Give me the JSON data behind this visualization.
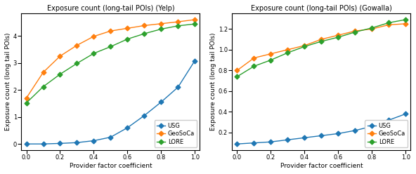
{
  "x": [
    0.0,
    0.1,
    0.2,
    0.3,
    0.4,
    0.5,
    0.6,
    0.7,
    0.8,
    0.9,
    1.0
  ],
  "yelp_usg": [
    0.0,
    0.0,
    0.02,
    0.05,
    0.12,
    0.25,
    0.6,
    1.05,
    1.55,
    2.1,
    3.08
  ],
  "yelp_geosoca": [
    1.7,
    2.65,
    3.25,
    3.65,
    3.98,
    4.18,
    4.28,
    4.38,
    4.45,
    4.52,
    4.6
  ],
  "yelp_lore": [
    1.52,
    2.12,
    2.58,
    2.98,
    3.35,
    3.6,
    3.88,
    4.08,
    4.25,
    4.37,
    4.44
  ],
  "gowa_usg": [
    0.09,
    0.1,
    0.11,
    0.13,
    0.15,
    0.17,
    0.19,
    0.22,
    0.26,
    0.32,
    0.38
  ],
  "gowa_geosoca": [
    0.8,
    0.92,
    0.96,
    1.0,
    1.04,
    1.1,
    1.14,
    1.18,
    1.2,
    1.24,
    1.25
  ],
  "gowa_lore": [
    0.74,
    0.84,
    0.9,
    0.97,
    1.03,
    1.08,
    1.12,
    1.17,
    1.21,
    1.26,
    1.29
  ],
  "color_usg": "#1f77b4",
  "color_geosoca": "#ff7f0e",
  "color_lore": "#2ca02c",
  "title_yelp": "Exposure count (long-tail POIs) (Yelp)",
  "title_gowa": "Exposure count (long-tail POIs) (Gowalla)",
  "ylabel": "Exposure count (long tail POIs)",
  "xlabel": "Provider factor coefficient",
  "legend_labels": [
    "USG",
    "GeoSoCa",
    "LORE"
  ],
  "title_fontsize": 7,
  "label_fontsize": 6.5,
  "tick_fontsize": 6,
  "legend_fontsize": 6,
  "marker_size": 3.5,
  "line_width": 1.0
}
